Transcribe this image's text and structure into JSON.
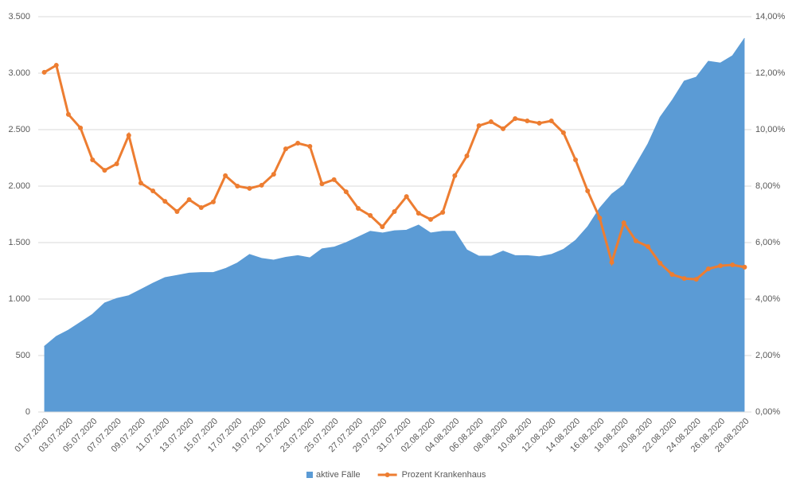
{
  "chart_data": {
    "type": "area-line",
    "categories": [
      "01.07.2020",
      null,
      "03.07.2020",
      null,
      "05.07.2020",
      null,
      "07.07.2020",
      null,
      "09.07.2020",
      null,
      "11.07.2020",
      null,
      "13.07.2020",
      null,
      "15.07.2020",
      null,
      "17.07.2020",
      null,
      "19.07.2020",
      null,
      "21.07.2020",
      null,
      "23.07.2020",
      null,
      "25.07.2020",
      null,
      "27.07.2020",
      null,
      "29.07.2020",
      null,
      "31.07.2020",
      null,
      "02.08.2020",
      null,
      "04.08.2020",
      null,
      "06.08.2020",
      null,
      "08.08.2020",
      null,
      "10.08.2020",
      null,
      "12.08.2020",
      null,
      "14.08.2020",
      null,
      "16.08.2020",
      null,
      "18.08.2020",
      null,
      "20.08.2020",
      null,
      "22.08.2020",
      null,
      "24.08.2020",
      null,
      "26.08.2020",
      null,
      "28.08.2020"
    ],
    "series": [
      {
        "name": "aktive Fälle",
        "color": "#5b9bd5",
        "kind": "area",
        "values": [
          580,
          670,
          725,
          795,
          865,
          965,
          1005,
          1030,
          1085,
          1140,
          1190,
          1210,
          1230,
          1235,
          1235,
          1270,
          1320,
          1395,
          1360,
          1345,
          1370,
          1385,
          1365,
          1445,
          1460,
          1500,
          1550,
          1600,
          1585,
          1605,
          1610,
          1655,
          1585,
          1600,
          1600,
          1435,
          1380,
          1380,
          1425,
          1385,
          1385,
          1375,
          1395,
          1440,
          1520,
          1640,
          1805,
          1930,
          2010,
          2190,
          2375,
          2610,
          2760,
          2930,
          2965,
          3105,
          3090,
          3155,
          3310
        ]
      },
      {
        "name": "Prozent Krankenhaus",
        "color": "#ed7d31",
        "kind": "line",
        "axis": "y2",
        "values": [
          12.03,
          12.28,
          10.54,
          10.06,
          8.93,
          8.56,
          8.79,
          9.8,
          8.11,
          7.83,
          7.46,
          7.1,
          7.52,
          7.24,
          7.44,
          8.37,
          8.0,
          7.92,
          8.03,
          8.42,
          9.32,
          9.52,
          9.41,
          8.08,
          8.23,
          7.8,
          7.21,
          6.96,
          6.56,
          7.1,
          7.63,
          7.04,
          6.82,
          7.07,
          8.37,
          9.07,
          10.14,
          10.28,
          10.03,
          10.39,
          10.31,
          10.23,
          10.31,
          9.89,
          8.93,
          7.83,
          6.87,
          5.3,
          6.7,
          6.06,
          5.86,
          5.27,
          4.87,
          4.73,
          4.7,
          5.07,
          5.18,
          5.21,
          5.13
        ]
      }
    ],
    "ylim": [
      0,
      3500
    ],
    "yticks": [
      0,
      500,
      {
        "value": 1000,
        "label": "1.000"
      },
      {
        "value": 1500,
        "label": "1.500"
      },
      {
        "value": 2000,
        "label": "2.000"
      },
      {
        "value": 2500,
        "label": "2.500"
      },
      {
        "value": 3000,
        "label": "3.000"
      },
      {
        "value": 3500,
        "label": "3.500"
      }
    ],
    "y2lim": [
      0,
      14
    ],
    "y2ticks": [
      {
        "value": 0,
        "label": "0,00%"
      },
      {
        "value": 2,
        "label": "2,00%"
      },
      {
        "value": 4,
        "label": "4,00%"
      },
      {
        "value": 6,
        "label": "6,00%"
      },
      {
        "value": 8,
        "label": "8,00%"
      },
      {
        "value": 10,
        "label": "10,00%"
      },
      {
        "value": 12,
        "label": "12,00%"
      },
      {
        "value": 14,
        "label": "14,00%"
      }
    ],
    "grid": true,
    "legend": "bottom"
  }
}
